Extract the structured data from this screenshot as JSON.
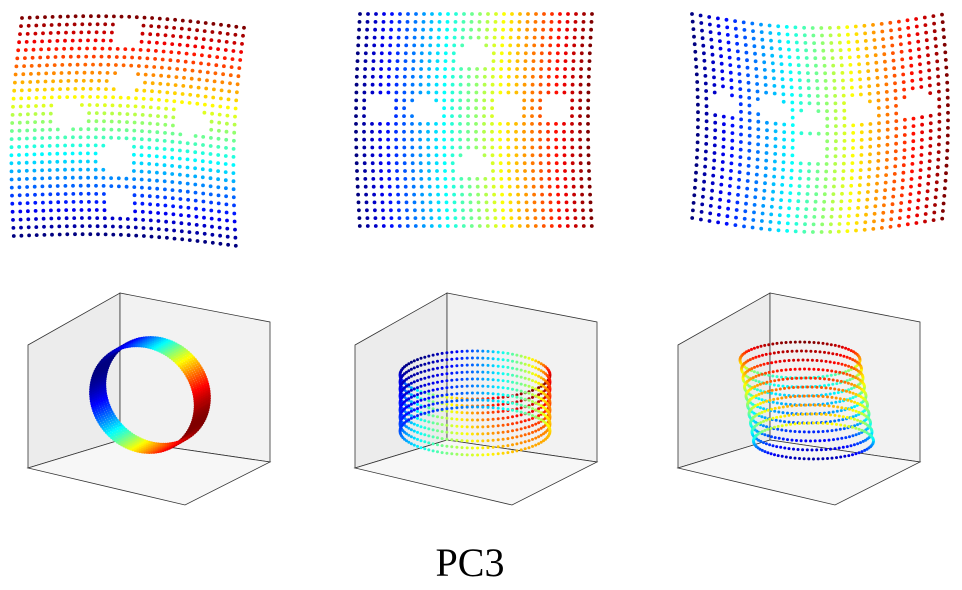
{
  "caption": "PC3"
}
